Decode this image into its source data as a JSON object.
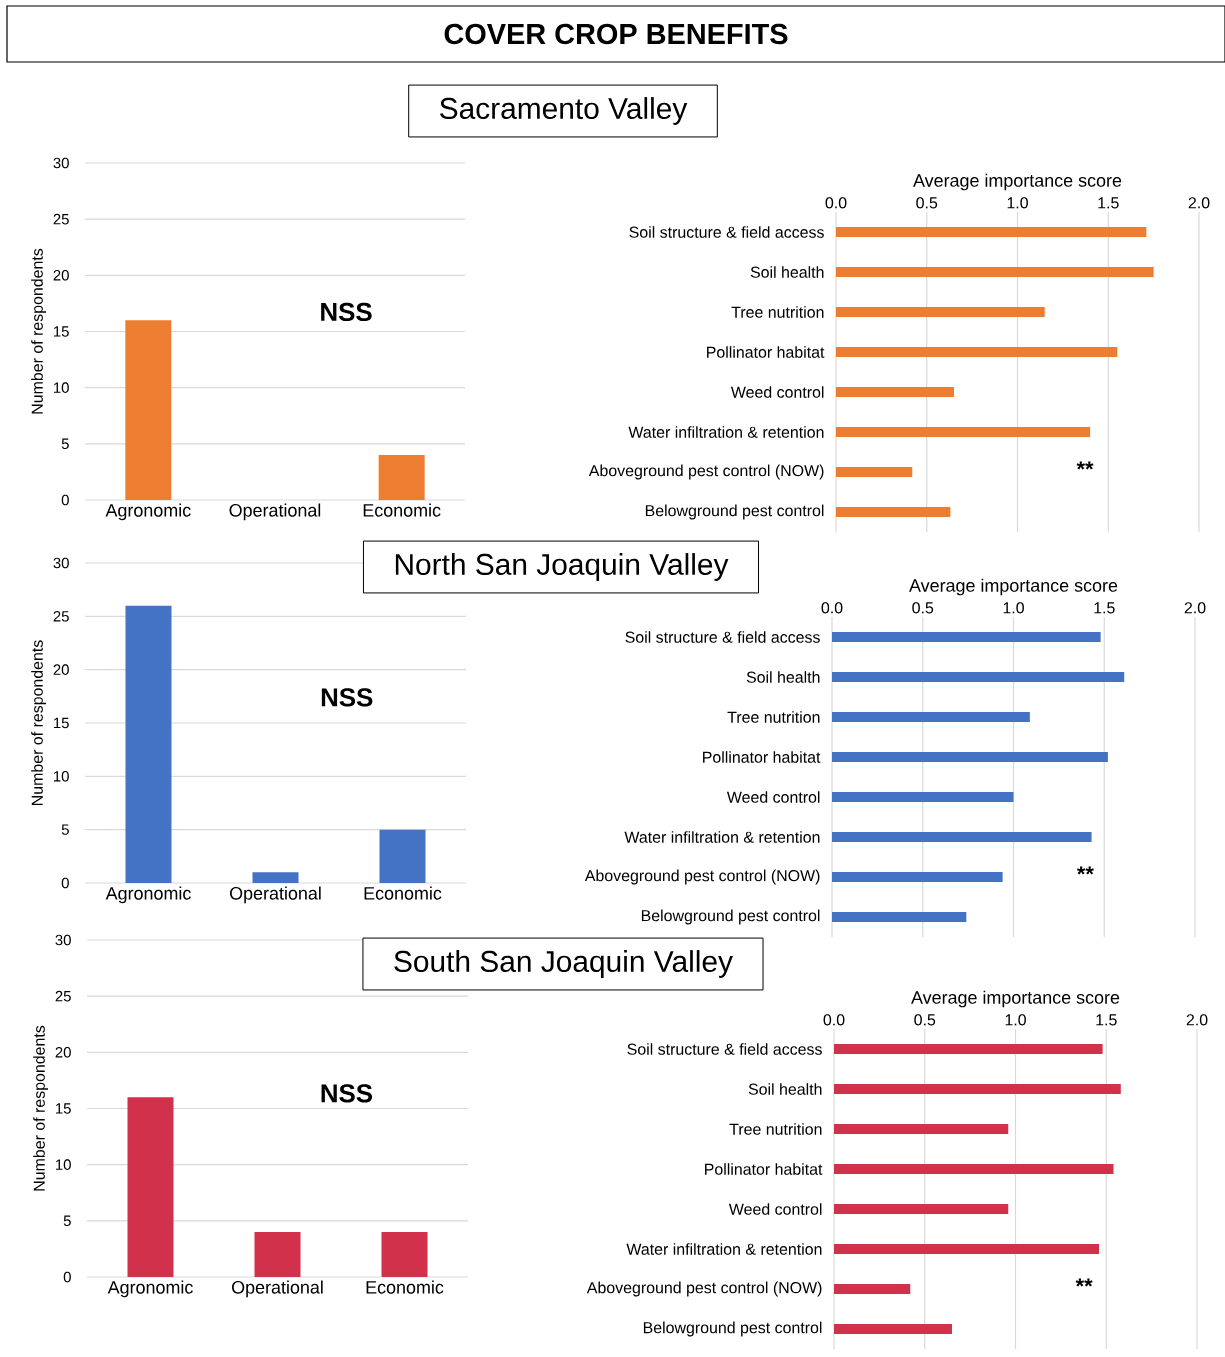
{
  "chart_data": [
    {
      "type": "other",
      "title": "COVER CROP BENEFITS"
    },
    {
      "type": "bar",
      "title": "Sacramento Valley",
      "categories": [
        "Agronomic",
        "Operational",
        "Economic"
      ],
      "values": [
        16,
        0,
        4
      ],
      "color": "#ed7d31",
      "ylabel": "Number of respondents",
      "ylim": [
        0,
        30
      ],
      "yticks": [
        0,
        5,
        10,
        15,
        20,
        25,
        30
      ],
      "grid": "y",
      "annotations": [
        "NSS"
      ]
    },
    {
      "type": "bar",
      "orientation": "horizontal",
      "categories": [
        "Soil structure & field access",
        "Soil health",
        "Tree nutrition",
        "Pollinator habitat",
        "Weed control",
        "Water infiltration & retention",
        "Aboveground pest control (NOW)",
        "Belowground pest control"
      ],
      "values": [
        1.71,
        1.75,
        1.15,
        1.55,
        0.65,
        1.4,
        0.42,
        0.63
      ],
      "color": "#ed7d31",
      "xlabel": "Average importance score",
      "xlim": [
        0,
        2
      ],
      "xticks": [
        {
          "value": 0,
          "label": "0.0"
        },
        {
          "value": 0.5,
          "label": "0.5"
        },
        {
          "value": 1,
          "label": "1.0"
        },
        {
          "value": 1.5,
          "label": "1.5"
        },
        {
          "value": 2,
          "label": "2.0"
        }
      ],
      "grid": "x",
      "annotations": [
        "**"
      ]
    },
    {
      "type": "bar",
      "title": "North San Joaquin Valley",
      "categories": [
        "Agronomic",
        "Operational",
        "Economic"
      ],
      "values": [
        26,
        1,
        5
      ],
      "color": "#4472c4",
      "ylabel": "Number of respondents",
      "ylim": [
        0,
        30
      ],
      "yticks": [
        0,
        5,
        10,
        15,
        20,
        25,
        30
      ],
      "grid": "y",
      "annotations": [
        "NSS"
      ]
    },
    {
      "type": "bar",
      "orientation": "horizontal",
      "categories": [
        "Soil structure & field access",
        "Soil health",
        "Tree nutrition",
        "Pollinator habitat",
        "Weed control",
        "Water infiltration & retention",
        "Aboveground pest control (NOW)",
        "Belowground pest control"
      ],
      "values": [
        1.48,
        1.61,
        1.09,
        1.52,
        1.0,
        1.43,
        0.94,
        0.74
      ],
      "color": "#4472c4",
      "xlabel": "Average importance score",
      "xlim": [
        0,
        2
      ],
      "xticks": [
        {
          "value": 0,
          "label": "0.0"
        },
        {
          "value": 0.5,
          "label": "0.5"
        },
        {
          "value": 1,
          "label": "1.0"
        },
        {
          "value": 1.5,
          "label": "1.5"
        },
        {
          "value": 2,
          "label": "2.0"
        }
      ],
      "grid": "x",
      "annotations": [
        "**"
      ]
    },
    {
      "type": "bar",
      "title": "South San Joaquin Valley",
      "categories": [
        "Agronomic",
        "Operational",
        "Economic"
      ],
      "values": [
        16,
        4,
        4
      ],
      "color": "#d1314b",
      "ylabel": "Number of respondents",
      "ylim": [
        0,
        30
      ],
      "yticks": [
        0,
        5,
        10,
        15,
        20,
        25,
        30
      ],
      "grid": "y",
      "annotations": [
        "NSS"
      ]
    },
    {
      "type": "bar",
      "orientation": "horizontal",
      "categories": [
        "Soil structure & field access",
        "Soil health",
        "Tree nutrition",
        "Pollinator habitat",
        "Weed control",
        "Water infiltration & retention",
        "Aboveground pest control (NOW)",
        "Belowground pest control"
      ],
      "values": [
        1.48,
        1.58,
        0.96,
        1.54,
        0.96,
        1.46,
        0.42,
        0.65
      ],
      "color": "#d1314b",
      "xlabel": "Average importance score",
      "xlim": [
        0,
        2
      ],
      "xticks": [
        {
          "value": 0,
          "label": "0.0"
        },
        {
          "value": 0.5,
          "label": "0.5"
        },
        {
          "value": 1,
          "label": "1.0"
        },
        {
          "value": 1.5,
          "label": "1.5"
        },
        {
          "value": 2,
          "label": "2.0"
        }
      ],
      "grid": "x",
      "annotations": [
        "**"
      ]
    }
  ]
}
